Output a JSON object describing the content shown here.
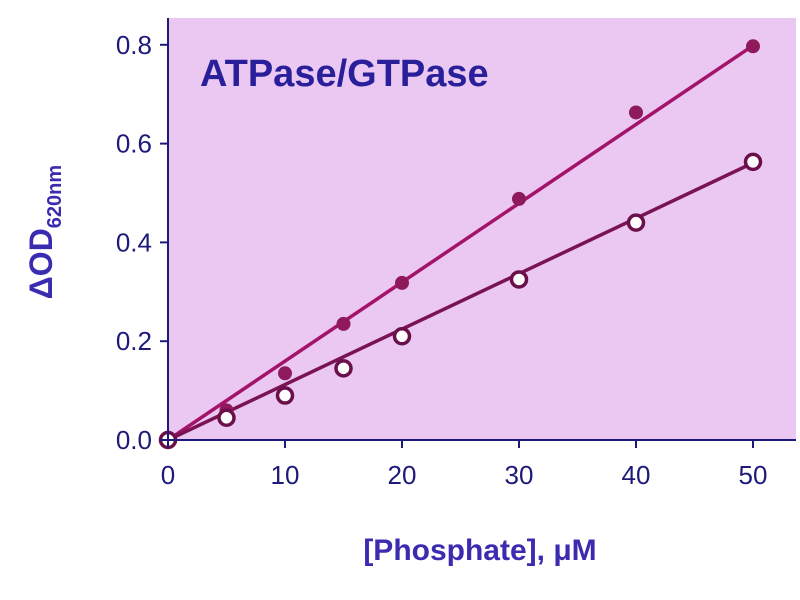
{
  "chart_data": {
    "type": "scatter",
    "title": "ATPase/GTPase",
    "xlabel": "[Phosphate], μM",
    "ylabel_main": "ΔOD",
    "ylabel_sub": "620nm",
    "xlim": [
      0,
      52
    ],
    "ylim": [
      0,
      0.8
    ],
    "x_ticks": [
      0,
      10,
      20,
      30,
      40,
      50
    ],
    "y_ticks": [
      0.0,
      0.2,
      0.4,
      0.6,
      0.8
    ],
    "x_tick_labels": [
      "0",
      "10",
      "20",
      "30",
      "40",
      "50"
    ],
    "y_tick_labels": [
      "0.0",
      "0.2",
      "0.4",
      "0.6",
      "0.8"
    ],
    "grid": false,
    "series": [
      {
        "marker": "filled-circle",
        "color": "#8e1a5c",
        "line_color": "#a4136a",
        "fit": {
          "slope": 0.01625,
          "intercept": -0.014
        },
        "x": [
          0,
          5,
          10,
          15,
          20,
          30,
          40,
          50
        ],
        "y": [
          0.0,
          0.06,
          0.135,
          0.235,
          0.318,
          0.488,
          0.663,
          0.797
        ]
      },
      {
        "marker": "open-circle",
        "color": "#6a0f4a",
        "line_color": "#7a1352",
        "fit": {
          "slope": 0.0113,
          "intercept": -0.004
        },
        "x": [
          0,
          5,
          10,
          15,
          20,
          30,
          40,
          50
        ],
        "y": [
          0.0,
          0.045,
          0.09,
          0.145,
          0.21,
          0.325,
          0.44,
          0.563
        ]
      }
    ]
  },
  "colors": {
    "plot_background": "#ebc8f2",
    "axis": "#1e1a7a"
  }
}
